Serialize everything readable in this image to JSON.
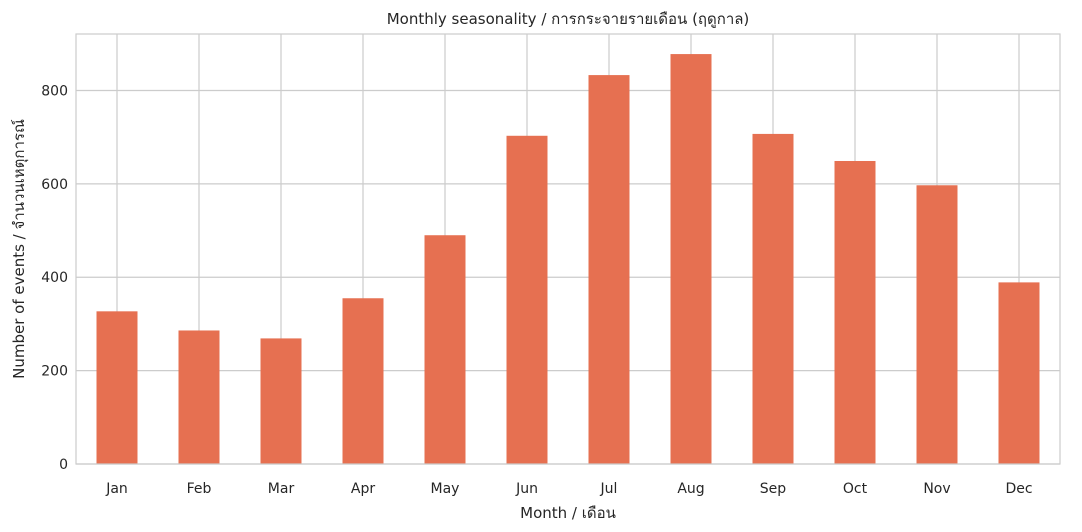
{
  "chart_data": {
    "type": "bar",
    "title": "Monthly seasonality / การกระจายรายเดือน (ฤดูกาล)",
    "xlabel": "Month / เดือน",
    "ylabel": "Number of events / จำนวนเหตุการณ์",
    "categories": [
      "Jan",
      "Feb",
      "Mar",
      "Apr",
      "May",
      "Jun",
      "Jul",
      "Aug",
      "Sep",
      "Oct",
      "Nov",
      "Dec"
    ],
    "values": [
      327,
      286,
      269,
      355,
      490,
      703,
      833,
      878,
      707,
      649,
      597,
      389
    ],
    "ylim": [
      0,
      921
    ],
    "yticks": [
      0,
      200,
      400,
      600,
      800
    ],
    "grid": true,
    "legend": "none",
    "bar_color": "#e67051",
    "grid_color": "#cccccc",
    "axis_color": "#cccccc"
  }
}
